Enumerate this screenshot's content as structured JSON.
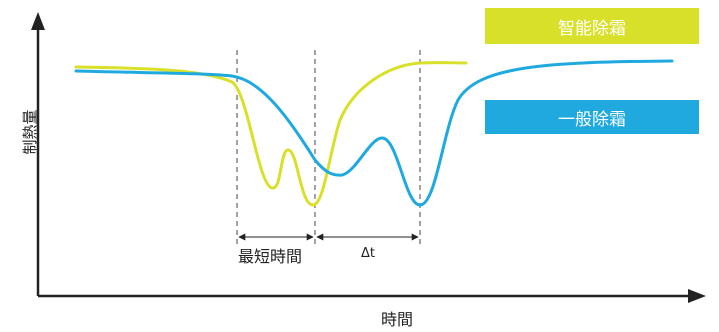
{
  "legend": {
    "smart_defrost": {
      "label": "智能除霜",
      "color": "#d8e02a"
    },
    "normal_defrost": {
      "label": "一般除霜",
      "color": "#1fa9df"
    }
  },
  "axes": {
    "y_label": "制熱量",
    "x_label": "時間"
  },
  "annotations": {
    "min_time_label": "最短時間",
    "delta_label": "Δt"
  }
}
